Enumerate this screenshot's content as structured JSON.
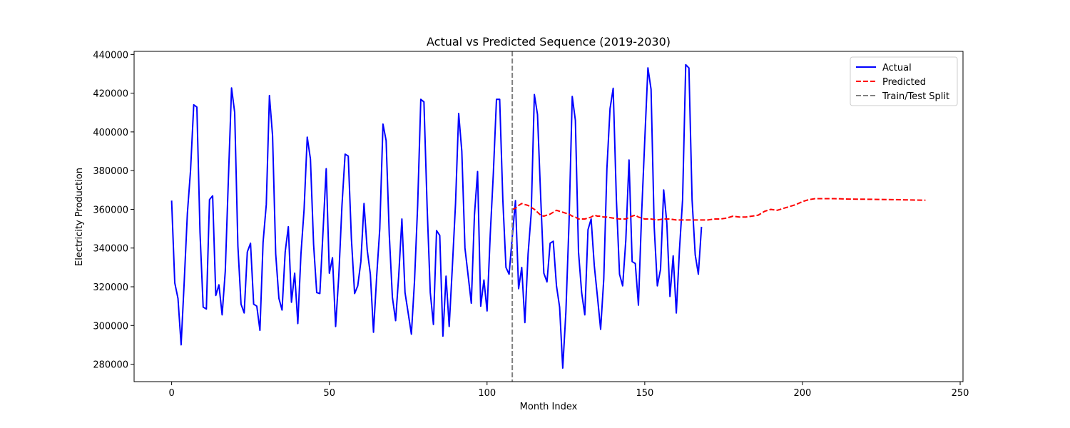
{
  "chart_data": {
    "type": "line",
    "title": "Actual vs Predicted Sequence (2019-2030)",
    "xlabel": "Month Index",
    "ylabel": "Electricity Production",
    "xlim": [
      -11.9,
      250.9
    ],
    "ylim": [
      271000,
      441600
    ],
    "xticks": [
      0,
      50,
      100,
      150,
      200,
      250
    ],
    "yticks": [
      280000,
      300000,
      320000,
      340000,
      360000,
      380000,
      400000,
      420000,
      440000
    ],
    "ytick_labels": [
      "280000",
      "300000",
      "320000",
      "340000",
      "360000",
      "380000",
      "400000",
      "420000",
      "440000"
    ],
    "legend_position": "top-right",
    "grid": false,
    "series": [
      {
        "name": "Actual",
        "color": "#0000ff",
        "style": "solid",
        "x_start": 0,
        "values": [
          364500,
          322000,
          314000,
          290000,
          323000,
          358000,
          380000,
          414000,
          412800,
          348000,
          309500,
          308500,
          365000,
          367000,
          315500,
          321000,
          305500,
          328000,
          376000,
          422700,
          410000,
          341000,
          311000,
          306500,
          338000,
          342500,
          311000,
          310000,
          297500,
          343000,
          362500,
          418800,
          398000,
          337000,
          314000,
          308000,
          338000,
          351000,
          312000,
          327000,
          301000,
          337000,
          360000,
          397300,
          386000,
          342000,
          317000,
          316500,
          349000,
          381000,
          327000,
          335000,
          299500,
          326000,
          362000,
          388500,
          387500,
          345000,
          316500,
          320500,
          333000,
          363000,
          339000,
          326500,
          296500,
          325000,
          350000,
          404000,
          395500,
          347000,
          314500,
          302500,
          326000,
          355000,
          317000,
          306500,
          295500,
          323000,
          362000,
          416800,
          415500,
          361000,
          317000,
          300500,
          349000,
          346500,
          294500,
          325500,
          299500,
          330000,
          363000,
          409500,
          390000,
          340000,
          326000,
          311500,
          357000,
          379500,
          310000,
          323500,
          307500,
          346500,
          378500,
          416800,
          416800,
          365000,
          330000,
          326500,
          346000,
          364500,
          319000,
          330000,
          301500,
          337000,
          358000,
          419300,
          409000,
          367000,
          327000,
          322500,
          342500,
          343500,
          320500,
          309500,
          278000,
          307000,
          353000,
          418300,
          406000,
          338000,
          317000,
          305500,
          349500,
          355000,
          331000,
          315000,
          298000,
          324000,
          381000,
          412000,
          422500,
          365000,
          326500,
          320500,
          344000,
          385500,
          333000,
          332000,
          310500,
          357000,
          396000,
          433100,
          422000,
          351000,
          320500,
          329000,
          370000,
          353000,
          315000,
          336000,
          306500,
          339000,
          365000,
          434700,
          433000,
          365000,
          336500,
          326500,
          351000
        ]
      },
      {
        "name": "Predicted",
        "color": "#ff0000",
        "style": "dashed",
        "points": [
          [
            108,
            360000
          ],
          [
            109,
            360500
          ],
          [
            110,
            362000
          ],
          [
            111,
            363000
          ],
          [
            112,
            362500
          ],
          [
            113,
            362000
          ],
          [
            114,
            361000
          ],
          [
            115,
            360000
          ],
          [
            116,
            358500
          ],
          [
            117,
            357000
          ],
          [
            118,
            356500
          ],
          [
            119,
            357000
          ],
          [
            120,
            357500
          ],
          [
            121,
            358500
          ],
          [
            122,
            359500
          ],
          [
            123,
            359000
          ],
          [
            124,
            358500
          ],
          [
            125,
            358000
          ],
          [
            126,
            357500
          ],
          [
            127,
            356500
          ],
          [
            128,
            356000
          ],
          [
            129,
            355000
          ],
          [
            130,
            355000
          ],
          [
            131,
            355000
          ],
          [
            132,
            355500
          ],
          [
            133,
            356000
          ],
          [
            134,
            357000
          ],
          [
            135,
            356500
          ],
          [
            136,
            356500
          ],
          [
            137,
            356000
          ],
          [
            138,
            356000
          ],
          [
            140,
            355500
          ],
          [
            142,
            355000
          ],
          [
            144,
            355000
          ],
          [
            146,
            356500
          ],
          [
            147,
            357000
          ],
          [
            148,
            356000
          ],
          [
            150,
            355000
          ],
          [
            152,
            355000
          ],
          [
            154,
            354500
          ],
          [
            156,
            355000
          ],
          [
            158,
            355000
          ],
          [
            160,
            354500
          ],
          [
            162,
            354500
          ],
          [
            164,
            354500
          ],
          [
            166,
            354500
          ],
          [
            168,
            354500
          ],
          [
            170,
            354500
          ],
          [
            172,
            355000
          ],
          [
            174,
            355000
          ],
          [
            176,
            355500
          ],
          [
            178,
            356500
          ],
          [
            180,
            356000
          ],
          [
            182,
            356000
          ],
          [
            184,
            356500
          ],
          [
            186,
            357000
          ],
          [
            188,
            359000
          ],
          [
            190,
            360000
          ],
          [
            192,
            359500
          ],
          [
            194,
            360500
          ],
          [
            196,
            361500
          ],
          [
            198,
            362500
          ],
          [
            200,
            364000
          ],
          [
            202,
            365000
          ],
          [
            204,
            365500
          ],
          [
            206,
            365500
          ],
          [
            210,
            365500
          ],
          [
            215,
            365300
          ],
          [
            220,
            365200
          ],
          [
            225,
            365100
          ],
          [
            230,
            365000
          ],
          [
            235,
            364800
          ],
          [
            239,
            364700
          ]
        ]
      }
    ],
    "vlines": [
      {
        "name": "Train/Test Split",
        "x": 108,
        "color": "#808080",
        "style": "dashed"
      }
    ]
  }
}
